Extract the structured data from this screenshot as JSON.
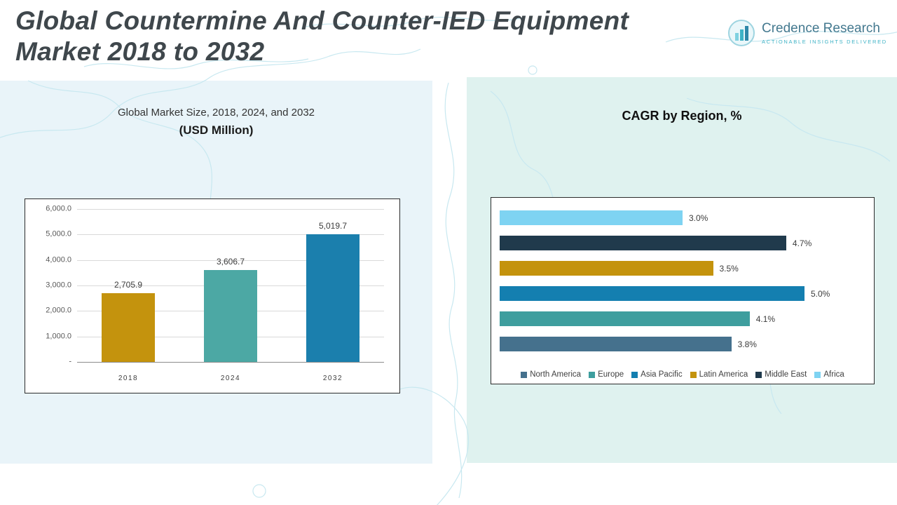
{
  "header": {
    "title_line1": "Global Countermine And Counter-IED Equipment",
    "title_line2": "Market 2018 to 2032",
    "logo": {
      "name": "Credence Research",
      "tagline": "Actionable Insights Delivered"
    }
  },
  "left_panel": {
    "title_line1": "Global Market Size, 2018, 2024, and 2032",
    "title_line2": "(USD Million)"
  },
  "right_panel": {
    "title": "CAGR by Region, %"
  },
  "chart_data": [
    {
      "type": "bar",
      "orientation": "vertical",
      "title": "Global Market Size, 2018, 2024, and 2032 (USD Million)",
      "categories": [
        "2018",
        "2024",
        "2032"
      ],
      "values": [
        2705.9,
        3606.7,
        5019.7
      ],
      "value_labels": [
        "2,705.9",
        "3,606.7",
        "5,019.7"
      ],
      "bar_colors": [
        "#c4930d",
        "#4ca8a4",
        "#1b7fad"
      ],
      "xlabel": "",
      "ylabel": "",
      "ylim": [
        0,
        6000
      ],
      "ytick_labels_top_to_bottom": [
        "6,000.0",
        "5,000.0",
        "4,000.0",
        "3,000.0",
        "2,000.0",
        "1,000.0",
        "-"
      ],
      "grid": true,
      "legend_position": "none"
    },
    {
      "type": "bar",
      "orientation": "horizontal",
      "title": "CAGR by Region, %",
      "xlim": [
        0,
        6
      ],
      "grid": false,
      "legend_position": "bottom",
      "bars_top_to_bottom": [
        {
          "region": "Africa",
          "value": 3.0,
          "label": "3.0%",
          "color": "#7ed3f2"
        },
        {
          "region": "Middle East",
          "value": 4.7,
          "label": "4.7%",
          "color": "#203a4c"
        },
        {
          "region": "Latin America",
          "value": 3.5,
          "label": "3.5%",
          "color": "#c4930d"
        },
        {
          "region": "Asia Pacific",
          "value": 5.0,
          "label": "5.0%",
          "color": "#147fb0"
        },
        {
          "region": "Europe",
          "value": 4.1,
          "label": "4.1%",
          "color": "#3e9e9e"
        },
        {
          "region": "North America",
          "value": 3.8,
          "label": "3.8%",
          "color": "#45718d"
        }
      ],
      "legend": [
        {
          "label": "North America",
          "color": "#45718d"
        },
        {
          "label": "Europe",
          "color": "#3e9e9e"
        },
        {
          "label": "Asia Pacific",
          "color": "#147fb0"
        },
        {
          "label": "Latin America",
          "color": "#c4930d"
        },
        {
          "label": "Middle East",
          "color": "#203a4c"
        },
        {
          "label": "Africa",
          "color": "#7ed3f2"
        }
      ]
    }
  ],
  "colors": {
    "left_panel_bg": "#e9f4f9",
    "right_panel_bg": "#dff2ef",
    "map_line": "#c8e8f0",
    "title_text": "#3f474c",
    "logo_blue": "#44798f",
    "logo_teal": "#3fb3c6"
  }
}
